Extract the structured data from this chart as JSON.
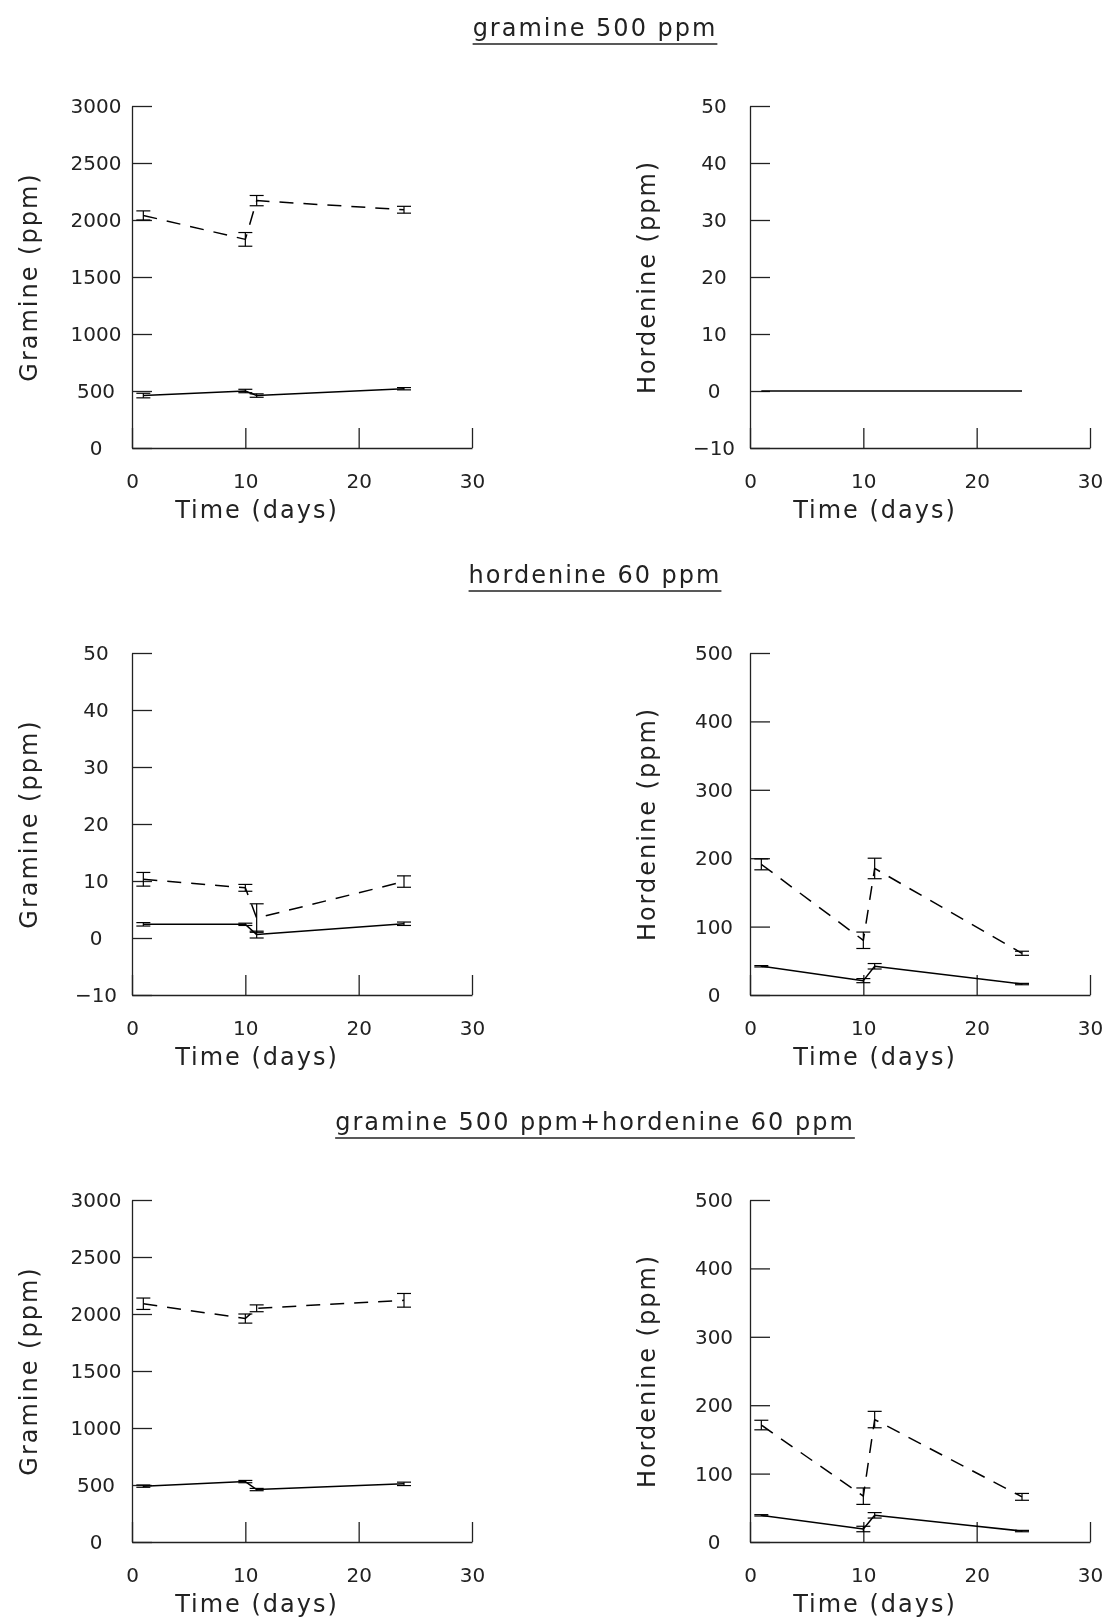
{
  "chart_data": [
    {
      "type": "line",
      "title": "gramine 500 ppm",
      "xlabel": "Time (days)",
      "ylabel": "Gramine (ppm)",
      "xlim": [
        0,
        30
      ],
      "xticks": [
        0,
        10,
        20,
        30
      ],
      "ylim": [
        0,
        3000
      ],
      "yticks": [
        0,
        500,
        1000,
        1500,
        2000,
        2500,
        3000
      ],
      "series": [
        {
          "color": "#000000",
          "line_style": "dashed",
          "x": [
            1,
            10,
            11,
            24
          ],
          "values": [
            2040,
            1830,
            2170,
            2090
          ],
          "errors": [
            40,
            60,
            45,
            30
          ]
        },
        {
          "color": "#000000",
          "line_style": "solid",
          "x": [
            1,
            10,
            11,
            24
          ],
          "values": [
            460,
            500,
            460,
            520
          ],
          "errors": [
            20,
            15,
            15,
            10
          ]
        }
      ]
    },
    {
      "type": "line",
      "xlabel": "Time (days)",
      "ylabel": "Hordenine (ppm)",
      "xlim": [
        0,
        30
      ],
      "xticks": [
        0,
        10,
        20,
        30
      ],
      "ylim": [
        -10,
        50
      ],
      "yticks": [
        -10,
        0,
        10,
        20,
        30,
        40,
        50
      ],
      "series": [
        {
          "color": "#000000",
          "line_style": "solid",
          "x": [
            1,
            10,
            11,
            24
          ],
          "values": [
            0,
            0,
            0,
            0
          ]
        }
      ]
    },
    {
      "type": "line",
      "title": "hordenine 60 ppm",
      "xlabel": "Time (days)",
      "ylabel": "Gramine (ppm)",
      "xlim": [
        0,
        30
      ],
      "xticks": [
        0,
        10,
        20,
        30
      ],
      "ylim": [
        -10,
        50
      ],
      "yticks": [
        -10,
        0,
        10,
        20,
        30,
        40,
        50
      ],
      "series": [
        {
          "color": "#000000",
          "line_style": "dashed",
          "x": [
            1,
            10,
            11,
            24
          ],
          "values": [
            10.3,
            8.8,
            3.5,
            9.9
          ],
          "errors": [
            1.2,
            0.6,
            2.5,
            1
          ]
        },
        {
          "color": "#000000",
          "line_style": "solid",
          "x": [
            1,
            10,
            11,
            24
          ],
          "values": [
            2.4,
            2.4,
            0.6,
            2.5
          ],
          "errors": [
            0.3,
            0.2,
            0.6,
            0.3
          ]
        }
      ]
    },
    {
      "type": "line",
      "xlabel": "Time (days)",
      "ylabel": "Hordenine (ppm)",
      "xlim": [
        0,
        30
      ],
      "xticks": [
        0,
        10,
        20,
        30
      ],
      "ylim": [
        0,
        500
      ],
      "yticks": [
        0,
        100,
        200,
        300,
        400,
        500
      ],
      "series": [
        {
          "color": "#000000",
          "line_style": "dashed",
          "x": [
            1,
            10,
            11,
            24
          ],
          "values": [
            191,
            80,
            185,
            61
          ],
          "errors": [
            8,
            12,
            15,
            3
          ]
        },
        {
          "color": "#000000",
          "line_style": "solid",
          "x": [
            1,
            10,
            11,
            24
          ],
          "values": [
            42,
            21,
            42,
            16
          ],
          "errors": [
            1,
            3,
            4,
            1
          ]
        }
      ]
    },
    {
      "type": "line",
      "title": "gramine 500 ppm+hordenine 60 ppm",
      "xlabel": "Time (days)",
      "ylabel": "Gramine (ppm)",
      "xlim": [
        0,
        30
      ],
      "xticks": [
        0,
        10,
        20,
        30
      ],
      "ylim": [
        0,
        3000
      ],
      "yticks": [
        0,
        500,
        1000,
        1500,
        2000,
        2500,
        3000
      ],
      "series": [
        {
          "color": "#000000",
          "line_style": "dashed",
          "x": [
            1,
            10,
            11,
            24
          ],
          "values": [
            2090,
            1960,
            2050,
            2120
          ],
          "errors": [
            50,
            40,
            30,
            60
          ]
        },
        {
          "color": "#000000",
          "line_style": "solid",
          "x": [
            1,
            10,
            11,
            24
          ],
          "values": [
            490,
            530,
            460,
            510
          ],
          "errors": [
            10,
            10,
            10,
            15
          ]
        }
      ]
    },
    {
      "type": "line",
      "xlabel": "Time (days)",
      "ylabel": "Hordenine (ppm)",
      "xlim": [
        0,
        30
      ],
      "xticks": [
        0,
        10,
        20,
        30
      ],
      "ylim": [
        0,
        500
      ],
      "yticks": [
        0,
        100,
        200,
        300,
        400,
        500
      ],
      "series": [
        {
          "color": "#000000",
          "line_style": "dashed",
          "x": [
            1,
            10,
            11,
            24
          ],
          "values": [
            171,
            67,
            179,
            66
          ],
          "errors": [
            7,
            12,
            12,
            5
          ]
        },
        {
          "color": "#000000",
          "line_style": "solid",
          "x": [
            1,
            10,
            11,
            24
          ],
          "values": [
            39,
            19,
            39,
            16
          ],
          "errors": [
            1,
            4,
            4,
            1
          ]
        }
      ]
    }
  ]
}
